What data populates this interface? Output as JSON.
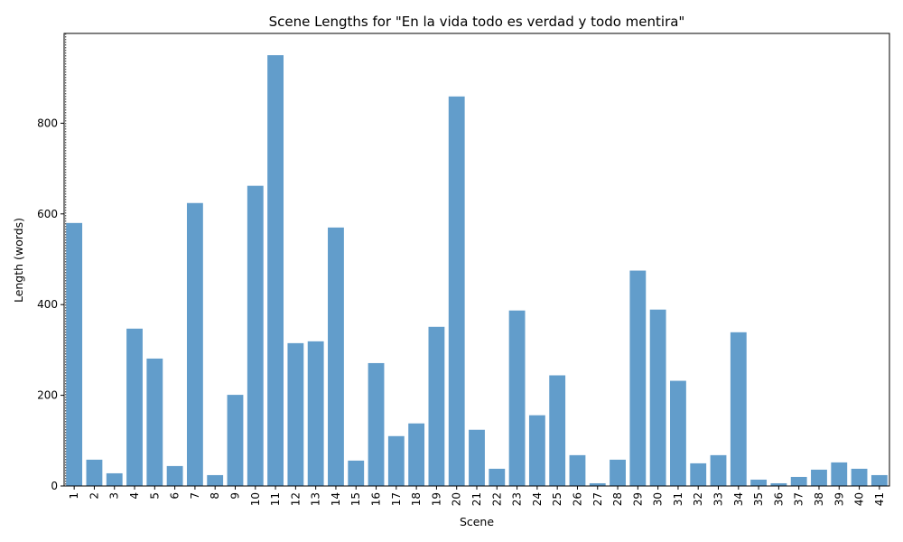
{
  "chart_data": {
    "type": "bar",
    "title": "Scene Lengths for \"En la vida todo es verdad y todo mentira\"",
    "xlabel": "Scene",
    "ylabel": "Length (words)",
    "categories": [
      "1",
      "2",
      "3",
      "4",
      "5",
      "6",
      "7",
      "8",
      "9",
      "10",
      "11",
      "12",
      "13",
      "14",
      "15",
      "16",
      "17",
      "18",
      "19",
      "20",
      "21",
      "22",
      "23",
      "24",
      "25",
      "26",
      "27",
      "28",
      "29",
      "30",
      "31",
      "32",
      "33",
      "34",
      "35",
      "36",
      "37",
      "38",
      "39",
      "40",
      "41"
    ],
    "values": [
      580,
      58,
      28,
      347,
      281,
      44,
      624,
      24,
      201,
      662,
      950,
      315,
      319,
      570,
      56,
      271,
      110,
      138,
      351,
      859,
      124,
      38,
      387,
      156,
      244,
      68,
      6,
      58,
      475,
      389,
      232,
      50,
      68,
      339,
      14,
      6,
      20,
      36,
      52,
      38,
      24
    ],
    "ylim": [
      0,
      998
    ],
    "yticks": [
      0,
      200,
      400,
      600,
      800
    ],
    "bar_color": "#4c8fc4",
    "vline": {
      "x_category": "1",
      "style": "dotted",
      "color": "#000000"
    },
    "grid": false,
    "legend": "none"
  }
}
